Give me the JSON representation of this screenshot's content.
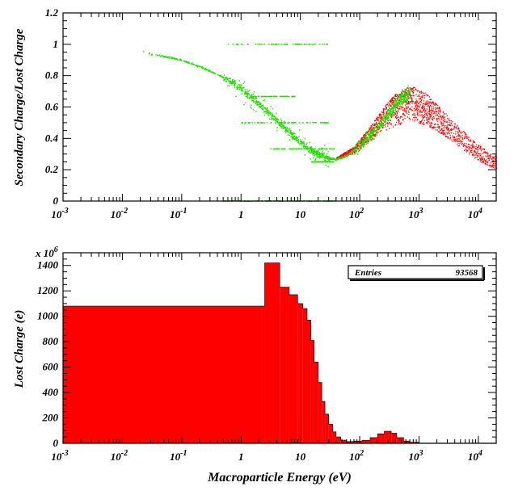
{
  "colors": {
    "green": "#22dd00",
    "red": "#ff0000",
    "axis": "#000000"
  },
  "chart_data": [
    {
      "type": "scatter",
      "xscale": "log",
      "xlim": [
        0.001,
        20000
      ],
      "ylim": [
        0,
        1.2
      ],
      "ylabel": "Secondary Charge/Lost Charge",
      "xlabel": "",
      "xticks": [
        0.001,
        0.01,
        0.1,
        1,
        10,
        100,
        1000,
        10000
      ],
      "xtick_labels": [
        {
          "base": "10",
          "exp": "-3"
        },
        {
          "base": "10",
          "exp": "-2"
        },
        {
          "base": "10",
          "exp": "-1"
        },
        {
          "base": "1",
          "exp": ""
        },
        {
          "base": "10",
          "exp": ""
        },
        {
          "base": "10",
          "exp": "2"
        },
        {
          "base": "10",
          "exp": "3"
        },
        {
          "base": "10",
          "exp": "4"
        }
      ],
      "yticks": [
        0,
        0.2,
        0.4,
        0.6,
        0.8,
        1,
        1.2
      ],
      "ytick_labels": [
        "0",
        "0.2",
        "0.4",
        "0.6",
        "0.8",
        "1",
        "1.2"
      ],
      "series": [
        {
          "color": "#22dd00",
          "curve": [
            [
              0.018,
              0.96
            ],
            [
              0.03,
              0.94
            ],
            [
              0.06,
              0.92
            ],
            [
              0.1,
              0.9
            ],
            [
              0.2,
              0.86
            ],
            [
              0.4,
              0.81
            ],
            [
              0.7,
              0.76
            ],
            [
              1,
              0.72
            ],
            [
              2,
              0.62
            ],
            [
              3,
              0.56
            ],
            [
              5,
              0.48
            ],
            [
              8,
              0.41
            ],
            [
              12,
              0.35
            ],
            [
              20,
              0.3
            ],
            [
              30,
              0.275
            ],
            [
              40,
              0.27
            ],
            [
              60,
              0.29
            ],
            [
              100,
              0.36
            ],
            [
              150,
              0.43
            ],
            [
              200,
              0.48
            ],
            [
              300,
              0.56
            ],
            [
              400,
              0.62
            ],
            [
              500,
              0.66
            ],
            [
              700,
              0.7
            ]
          ],
          "bands": [
            {
              "y": 1.0,
              "x": [
                0.5,
                30
              ]
            },
            {
              "y": 0.0,
              "x": [
                0.5,
                40
              ]
            },
            {
              "y": 0.667,
              "x": [
                1.5,
                8
              ]
            },
            {
              "y": 0.5,
              "x": [
                1.0,
                30
              ]
            },
            {
              "y": 0.333,
              "x": [
                3.0,
                40
              ]
            },
            {
              "y": 0.25,
              "x": [
                15,
                35
              ]
            }
          ]
        },
        {
          "color": "#ff0000",
          "upper": [
            [
              40,
              0.28
            ],
            [
              80,
              0.35
            ],
            [
              150,
              0.48
            ],
            [
              250,
              0.6
            ],
            [
              400,
              0.69
            ],
            [
              600,
              0.73
            ],
            [
              800,
              0.73
            ],
            [
              1200,
              0.7
            ],
            [
              2000,
              0.62
            ],
            [
              4000,
              0.5
            ],
            [
              8000,
              0.39
            ],
            [
              15000,
              0.31
            ],
            [
              20000,
              0.29
            ]
          ],
          "lower": [
            [
              40,
              0.27
            ],
            [
              80,
              0.3
            ],
            [
              150,
              0.38
            ],
            [
              250,
              0.44
            ],
            [
              400,
              0.48
            ],
            [
              600,
              0.5
            ],
            [
              800,
              0.5
            ],
            [
              1200,
              0.49
            ],
            [
              2000,
              0.45
            ],
            [
              4000,
              0.37
            ],
            [
              8000,
              0.28
            ],
            [
              15000,
              0.22
            ],
            [
              20000,
              0.2
            ]
          ]
        }
      ]
    },
    {
      "type": "bar",
      "xscale": "log",
      "xlim": [
        0.001,
        20000
      ],
      "ylim": [
        0,
        1500
      ],
      "ylabel": "Lost Charge (e)",
      "xlabel": "Macroparticle Energy (eV)",
      "y_multiplier": "x 10",
      "y_multiplier_exp": "6",
      "stats": {
        "label": "Entries",
        "value": "93568"
      },
      "yticks": [
        0,
        200,
        400,
        600,
        800,
        1000,
        1200,
        1400
      ],
      "ytick_labels": [
        "0",
        "200",
        "400",
        "600",
        "800",
        "1000",
        "1200",
        "1400"
      ],
      "bins": [
        [
          0.001,
          2.5,
          1080
        ],
        [
          2.5,
          4.5,
          1420
        ],
        [
          4.5,
          6.5,
          1230
        ],
        [
          6.5,
          9,
          1170
        ],
        [
          9,
          11,
          1100
        ],
        [
          11,
          13,
          1060
        ],
        [
          13,
          15,
          970
        ],
        [
          15,
          17,
          810
        ],
        [
          17,
          20,
          640
        ],
        [
          20,
          23,
          480
        ],
        [
          23,
          26,
          330
        ],
        [
          26,
          30,
          230
        ],
        [
          30,
          35,
          150
        ],
        [
          35,
          40,
          90
        ],
        [
          40,
          48,
          50
        ],
        [
          48,
          60,
          25
        ],
        [
          60,
          80,
          14
        ],
        [
          80,
          110,
          18
        ],
        [
          110,
          150,
          24
        ],
        [
          150,
          200,
          45
        ],
        [
          200,
          260,
          75
        ],
        [
          260,
          340,
          95
        ],
        [
          340,
          420,
          80
        ],
        [
          420,
          550,
          45
        ],
        [
          550,
          700,
          18
        ],
        [
          700,
          1000,
          8
        ],
        [
          1000,
          20000,
          2
        ]
      ]
    }
  ]
}
